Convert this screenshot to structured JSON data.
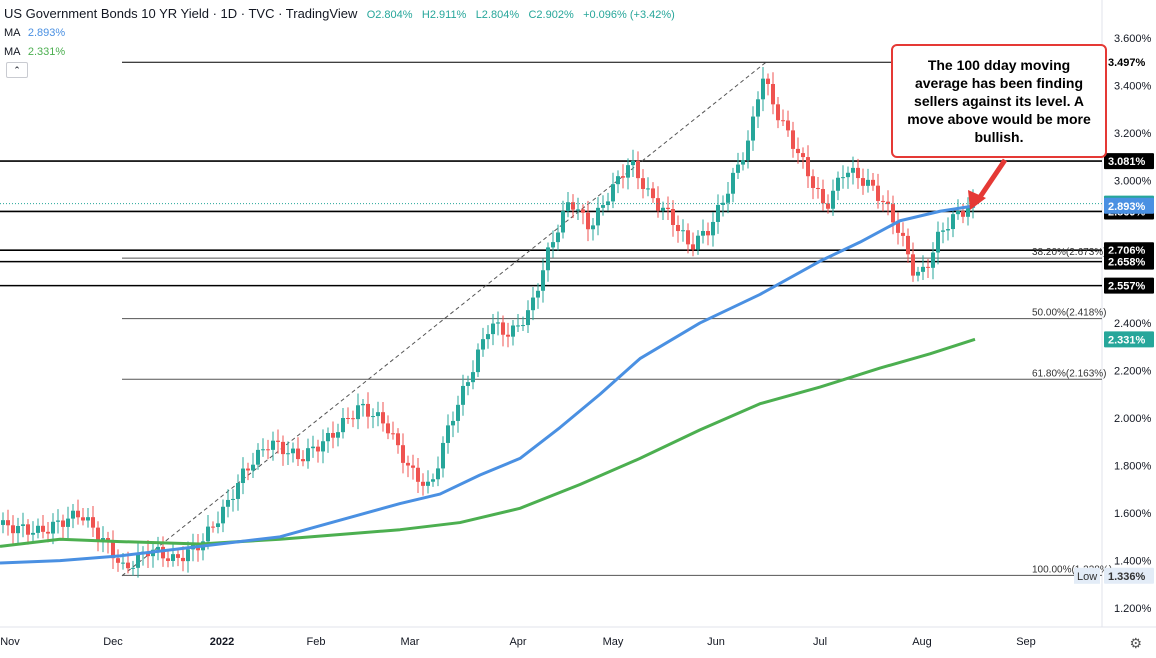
{
  "header": {
    "title": "US Government Bonds 10 YR Yield · 1D · TVC · TradingView",
    "open": "O2.804%",
    "high": "H2.911%",
    "low": "L2.804%",
    "close": "C2.902%",
    "change": "+0.096% (+3.42%)",
    "ma_label": "MA",
    "ma1_value": "2.893%",
    "ma2_value": "2.331%",
    "collapse_glyph": "⌃"
  },
  "annotation": {
    "text": "The 100 dday moving average has been finding sellers against its level. A move above would be more bullish."
  },
  "colors": {
    "up": "#26a69a",
    "down": "#ef5350",
    "ma100": "#4a90e2",
    "ma200": "#4caf50",
    "annotation_border": "#e53935",
    "price_tag": "#26a69a"
  },
  "icons": {
    "settings": "gear-icon"
  },
  "chart_data": {
    "type": "candlestick",
    "x_axis_labels": [
      "Nov",
      "Dec",
      "2022",
      "Feb",
      "Mar",
      "Apr",
      "May",
      "Jun",
      "Jul",
      "Aug",
      "Sep"
    ],
    "y_ticks": [
      "3.600%",
      "3.400%",
      "3.200%",
      "3.000%",
      "2.400%",
      "2.200%",
      "2.000%",
      "1.800%",
      "1.600%",
      "1.400%",
      "1.200%"
    ],
    "ylim": [
      1.15,
      3.7
    ],
    "last_price": 2.902,
    "horizontal_levels": [
      {
        "value": 3.497,
        "label": "3.497%",
        "style": "white"
      },
      {
        "value": 3.081,
        "label": "3.081%",
        "style": "black"
      },
      {
        "value": 2.869,
        "label": "2.869%",
        "style": "black"
      },
      {
        "value": 2.706,
        "label": "2.706%",
        "style": "black"
      },
      {
        "value": 2.658,
        "label": "2.658%",
        "style": "black"
      },
      {
        "value": 2.557,
        "label": "2.557%",
        "style": "black"
      }
    ],
    "fibonacci": [
      {
        "value": 2.673,
        "label": "38.20%(2.673%)"
      },
      {
        "value": 2.418,
        "label": "50.00%(2.418%)"
      },
      {
        "value": 2.163,
        "label": "61.80%(2.163%)"
      },
      {
        "value": 1.338,
        "label": "100.00%(1.338%)"
      }
    ],
    "price_tags": [
      {
        "value": 2.902,
        "label": "2.902%",
        "style": "green"
      },
      {
        "value": 2.893,
        "label": "2.893%",
        "style": "blue"
      },
      {
        "value": 2.331,
        "label": "2.331%",
        "style": "green"
      },
      {
        "value": 1.336,
        "label": "1.336%",
        "style": "low"
      }
    ],
    "low_label": "Low",
    "ma100_points": [
      [
        0,
        1.39
      ],
      [
        60,
        1.4
      ],
      [
        120,
        1.42
      ],
      [
        200,
        1.46
      ],
      [
        280,
        1.5
      ],
      [
        340,
        1.57
      ],
      [
        400,
        1.64
      ],
      [
        440,
        1.68
      ],
      [
        480,
        1.76
      ],
      [
        520,
        1.83
      ],
      [
        560,
        1.96
      ],
      [
        600,
        2.1
      ],
      [
        640,
        2.25
      ],
      [
        700,
        2.4
      ],
      [
        760,
        2.52
      ],
      [
        820,
        2.66
      ],
      [
        860,
        2.74
      ],
      [
        900,
        2.83
      ],
      [
        940,
        2.87
      ],
      [
        975,
        2.893
      ]
    ],
    "ma200_points": [
      [
        0,
        1.46
      ],
      [
        60,
        1.49
      ],
      [
        120,
        1.48
      ],
      [
        200,
        1.47
      ],
      [
        280,
        1.49
      ],
      [
        340,
        1.51
      ],
      [
        400,
        1.53
      ],
      [
        460,
        1.56
      ],
      [
        520,
        1.62
      ],
      [
        580,
        1.72
      ],
      [
        640,
        1.83
      ],
      [
        700,
        1.95
      ],
      [
        760,
        2.06
      ],
      [
        820,
        2.13
      ],
      [
        880,
        2.21
      ],
      [
        930,
        2.27
      ],
      [
        975,
        2.331
      ]
    ]
  }
}
